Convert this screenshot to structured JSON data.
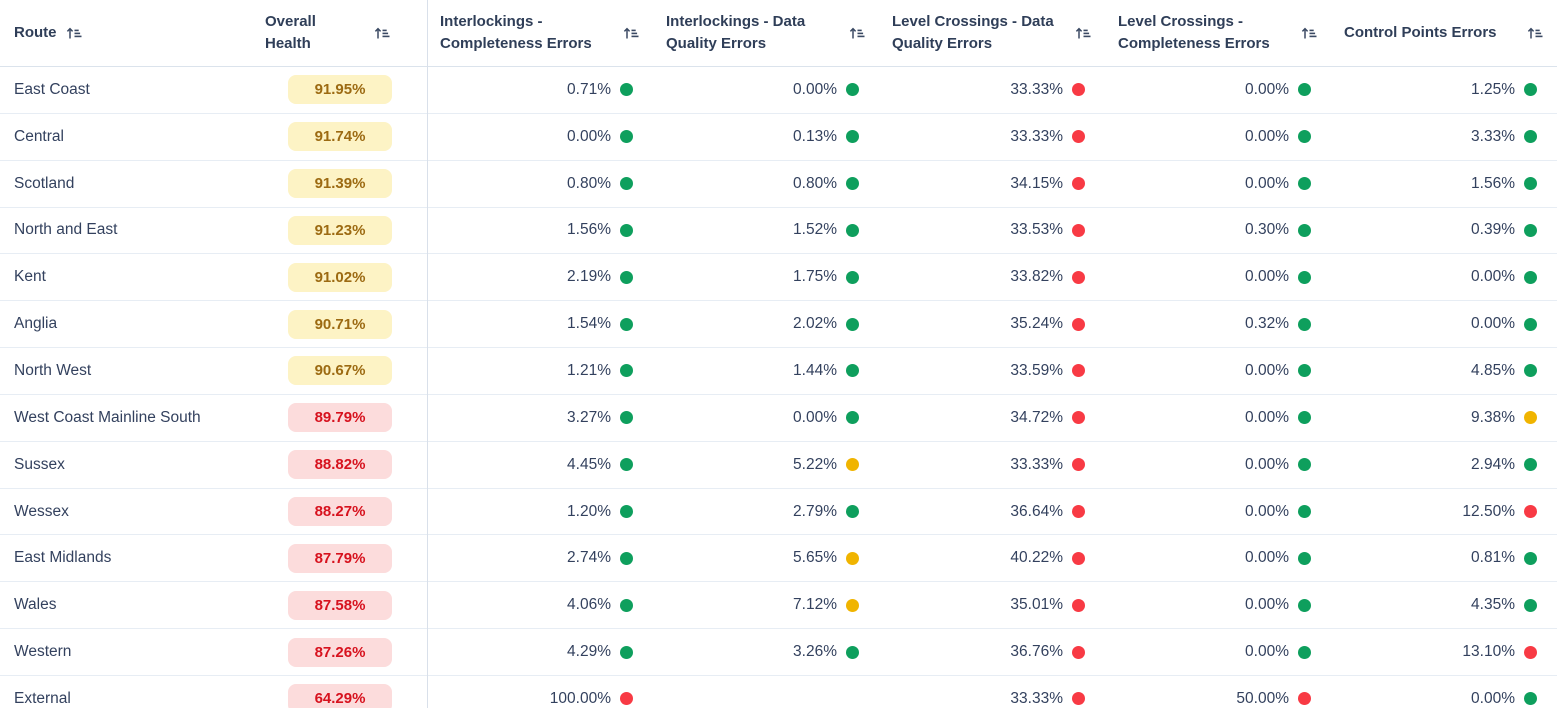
{
  "table": {
    "columns": [
      {
        "label": "Route",
        "icon": "sort-icon",
        "sortable": true
      },
      {
        "label": "Overall Health",
        "icon": "sort-icon",
        "sortable": true
      },
      {
        "label": "Interlockings - Completeness Errors",
        "icon": "sort-icon",
        "sortable": true
      },
      {
        "label": "Interlockings - Data Quality Errors",
        "icon": "sort-icon",
        "sortable": true
      },
      {
        "label": "Level Crossings - Data Quality Errors",
        "icon": "sort-icon",
        "sortable": true
      },
      {
        "label": "Level Crossings - Completeness Errors",
        "icon": "sort-icon",
        "sortable": true
      },
      {
        "label": "Control Points Errors",
        "icon": "sort-icon",
        "sortable": true
      }
    ],
    "rows": [
      {
        "route": "East Coast",
        "overall_health": "91.95%",
        "health_level": "amber",
        "metrics": [
          {
            "value": "0.71%",
            "status": "green"
          },
          {
            "value": "0.00%",
            "status": "green"
          },
          {
            "value": "33.33%",
            "status": "red"
          },
          {
            "value": "0.00%",
            "status": "green"
          },
          {
            "value": "1.25%",
            "status": "green"
          }
        ]
      },
      {
        "route": "Central",
        "overall_health": "91.74%",
        "health_level": "amber",
        "metrics": [
          {
            "value": "0.00%",
            "status": "green"
          },
          {
            "value": "0.13%",
            "status": "green"
          },
          {
            "value": "33.33%",
            "status": "red"
          },
          {
            "value": "0.00%",
            "status": "green"
          },
          {
            "value": "3.33%",
            "status": "green"
          }
        ]
      },
      {
        "route": "Scotland",
        "overall_health": "91.39%",
        "health_level": "amber",
        "metrics": [
          {
            "value": "0.80%",
            "status": "green"
          },
          {
            "value": "0.80%",
            "status": "green"
          },
          {
            "value": "34.15%",
            "status": "red"
          },
          {
            "value": "0.00%",
            "status": "green"
          },
          {
            "value": "1.56%",
            "status": "green"
          }
        ]
      },
      {
        "route": "North and East",
        "overall_health": "91.23%",
        "health_level": "amber",
        "metrics": [
          {
            "value": "1.56%",
            "status": "green"
          },
          {
            "value": "1.52%",
            "status": "green"
          },
          {
            "value": "33.53%",
            "status": "red"
          },
          {
            "value": "0.30%",
            "status": "green"
          },
          {
            "value": "0.39%",
            "status": "green"
          }
        ]
      },
      {
        "route": "Kent",
        "overall_health": "91.02%",
        "health_level": "amber",
        "metrics": [
          {
            "value": "2.19%",
            "status": "green"
          },
          {
            "value": "1.75%",
            "status": "green"
          },
          {
            "value": "33.82%",
            "status": "red"
          },
          {
            "value": "0.00%",
            "status": "green"
          },
          {
            "value": "0.00%",
            "status": "green"
          }
        ]
      },
      {
        "route": "Anglia",
        "overall_health": "90.71%",
        "health_level": "amber",
        "metrics": [
          {
            "value": "1.54%",
            "status": "green"
          },
          {
            "value": "2.02%",
            "status": "green"
          },
          {
            "value": "35.24%",
            "status": "red"
          },
          {
            "value": "0.32%",
            "status": "green"
          },
          {
            "value": "0.00%",
            "status": "green"
          }
        ]
      },
      {
        "route": "North West",
        "overall_health": "90.67%",
        "health_level": "amber",
        "metrics": [
          {
            "value": "1.21%",
            "status": "green"
          },
          {
            "value": "1.44%",
            "status": "green"
          },
          {
            "value": "33.59%",
            "status": "red"
          },
          {
            "value": "0.00%",
            "status": "green"
          },
          {
            "value": "4.85%",
            "status": "green"
          }
        ]
      },
      {
        "route": "West Coast Mainline South",
        "overall_health": "89.79%",
        "health_level": "red",
        "metrics": [
          {
            "value": "3.27%",
            "status": "green"
          },
          {
            "value": "0.00%",
            "status": "green"
          },
          {
            "value": "34.72%",
            "status": "red"
          },
          {
            "value": "0.00%",
            "status": "green"
          },
          {
            "value": "9.38%",
            "status": "amber"
          }
        ]
      },
      {
        "route": "Sussex",
        "overall_health": "88.82%",
        "health_level": "red",
        "metrics": [
          {
            "value": "4.45%",
            "status": "green"
          },
          {
            "value": "5.22%",
            "status": "amber"
          },
          {
            "value": "33.33%",
            "status": "red"
          },
          {
            "value": "0.00%",
            "status": "green"
          },
          {
            "value": "2.94%",
            "status": "green"
          }
        ]
      },
      {
        "route": "Wessex",
        "overall_health": "88.27%",
        "health_level": "red",
        "metrics": [
          {
            "value": "1.20%",
            "status": "green"
          },
          {
            "value": "2.79%",
            "status": "green"
          },
          {
            "value": "36.64%",
            "status": "red"
          },
          {
            "value": "0.00%",
            "status": "green"
          },
          {
            "value": "12.50%",
            "status": "red"
          }
        ]
      },
      {
        "route": "East Midlands",
        "overall_health": "87.79%",
        "health_level": "red",
        "metrics": [
          {
            "value": "2.74%",
            "status": "green"
          },
          {
            "value": "5.65%",
            "status": "amber"
          },
          {
            "value": "40.22%",
            "status": "red"
          },
          {
            "value": "0.00%",
            "status": "green"
          },
          {
            "value": "0.81%",
            "status": "green"
          }
        ]
      },
      {
        "route": "Wales",
        "overall_health": "87.58%",
        "health_level": "red",
        "metrics": [
          {
            "value": "4.06%",
            "status": "green"
          },
          {
            "value": "7.12%",
            "status": "amber"
          },
          {
            "value": "35.01%",
            "status": "red"
          },
          {
            "value": "0.00%",
            "status": "green"
          },
          {
            "value": "4.35%",
            "status": "green"
          }
        ]
      },
      {
        "route": "Western",
        "overall_health": "87.26%",
        "health_level": "red",
        "metrics": [
          {
            "value": "4.29%",
            "status": "green"
          },
          {
            "value": "3.26%",
            "status": "green"
          },
          {
            "value": "36.76%",
            "status": "red"
          },
          {
            "value": "0.00%",
            "status": "green"
          },
          {
            "value": "13.10%",
            "status": "red"
          }
        ]
      },
      {
        "route": "External",
        "overall_health": "64.29%",
        "health_level": "red",
        "metrics": [
          {
            "value": "100.00%",
            "status": "red"
          },
          {
            "value": "",
            "status": null
          },
          {
            "value": "33.33%",
            "status": "red"
          },
          {
            "value": "50.00%",
            "status": "red"
          },
          {
            "value": "0.00%",
            "status": "green"
          }
        ]
      }
    ]
  },
  "colors": {
    "green": "#0e9f5d",
    "red": "#f83a44",
    "amber": "#f0b400",
    "text": "#33415e",
    "header_text": "#2f3e58",
    "row_border": "#e7edf4",
    "divider": "#d9e0ea"
  },
  "badge_styles": {
    "amber": {
      "bg": "#fdf3c5",
      "text": "#9c6a12"
    },
    "red": {
      "bg": "#fcdcdc",
      "text": "#d7121e"
    }
  }
}
